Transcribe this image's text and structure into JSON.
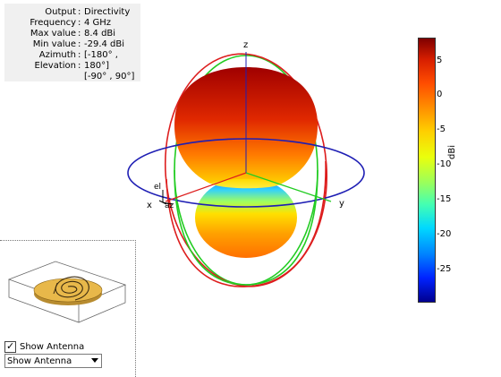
{
  "info": {
    "rows": [
      {
        "key": "Output",
        "value": "Directivity"
      },
      {
        "key": "Frequency",
        "value": "4 GHz"
      },
      {
        "key": "Max value",
        "value": "8.4 dBi"
      },
      {
        "key": "Min value",
        "value": "-29.4 dBi"
      },
      {
        "key": "Azimuth",
        "value": "[-180° ,"
      },
      {
        "key": "Elevation",
        "value": "180°]"
      }
    ],
    "extra_line": "[-90° , 90°]"
  },
  "axes": {
    "z": "z",
    "x": "x",
    "y": "y",
    "el": "el",
    "az": "az"
  },
  "colorbar": {
    "unit": "dBi",
    "ticks": [
      "5",
      "0",
      "-5",
      "-10",
      "-15",
      "-20",
      "-25"
    ]
  },
  "controls": {
    "checkbox_label": "Show Antenna",
    "checkbox_checked": true,
    "select_value": "Show Antenna"
  },
  "colors": {
    "azimuth_circle": "#1f1fb4",
    "elevation_circle_red": "#e02020",
    "elevation_circle_green": "#20d020"
  }
}
